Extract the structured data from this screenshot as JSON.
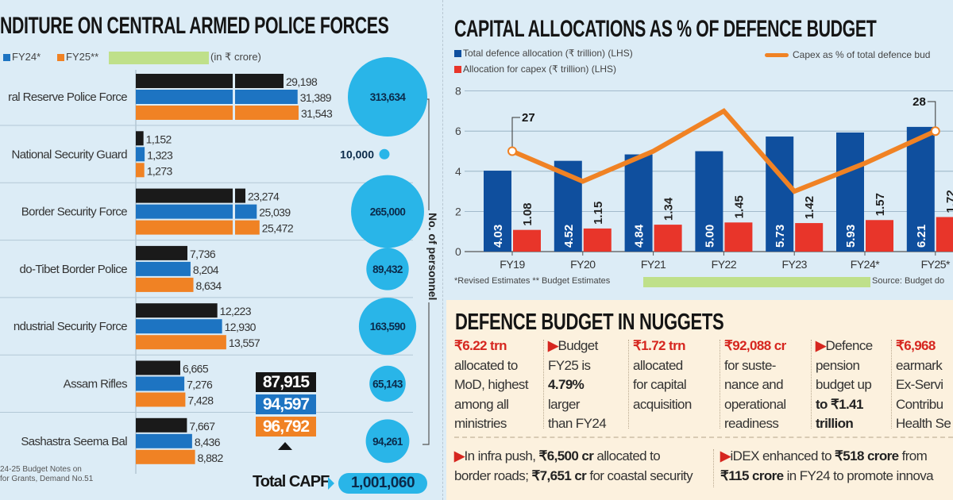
{
  "left": {
    "title": "NDITURE ON CENTRAL ARMED POLICE FORCES",
    "legend": [
      {
        "label": "FY24*",
        "color": "#1d74c2"
      },
      {
        "label": "FY25**",
        "color": "#f08224"
      }
    ],
    "unit": "(in ₹ crore)",
    "personnel_label": "No. of personnel",
    "totals": {
      "black": "87,915",
      "blue": "94,597",
      "orange": "96,792"
    },
    "total_capf_label": "Total CAPF",
    "total_capf_value": "1,001,060",
    "source_lines": [
      "24-25 Budget Notes on",
      "for Grants, Demand No.51"
    ]
  },
  "chart_data": [
    {
      "type": "bar",
      "orientation": "horizontal",
      "title": "NDITURE ON CENTRAL ARMED POLICE FORCES",
      "unit": "(in ₹ crore)",
      "series_colors": [
        "#1a1a1a",
        "#1d74c2",
        "#f08224"
      ],
      "series_names": [
        "",
        "FY24*",
        "FY25**"
      ],
      "rows": [
        {
          "label": "ral Reserve Police Force",
          "values": [
            29198,
            31389,
            31543
          ],
          "value_labels": [
            "29,198",
            "31,389",
            "31,543"
          ],
          "personnel": 313634,
          "personnel_label": "313,634"
        },
        {
          "label": "National Security Guard",
          "values": [
            1152,
            1323,
            1273
          ],
          "value_labels": [
            "1,152",
            "1,323",
            "1,273"
          ],
          "personnel": 10000,
          "personnel_label": "10,000"
        },
        {
          "label": "Border Security Force",
          "values": [
            23274,
            25039,
            25472
          ],
          "value_labels": [
            "23,274",
            "25,039",
            "25,472"
          ],
          "personnel": 265000,
          "personnel_label": "265,000"
        },
        {
          "label": "do-Tibet Border Police",
          "values": [
            7736,
            8204,
            8634
          ],
          "value_labels": [
            "7,736",
            "8,204",
            "8,634"
          ],
          "personnel": 89432,
          "personnel_label": "89,432"
        },
        {
          "label": "ndustrial Security Force",
          "values": [
            12223,
            12930,
            13557
          ],
          "value_labels": [
            "12,223",
            "12,930",
            "13,557"
          ],
          "personnel": 163590,
          "personnel_label": "163,590"
        },
        {
          "label": "Assam Rifles",
          "values": [
            6665,
            7276,
            7428
          ],
          "value_labels": [
            "6,665",
            "7,276",
            "7,428"
          ],
          "personnel": 65143,
          "personnel_label": "65,143"
        },
        {
          "label": "Sashastra Seema Bal",
          "values": [
            7667,
            8436,
            8882
          ],
          "value_labels": [
            "7,667",
            "8,436",
            "8,882"
          ],
          "personnel": 94261,
          "personnel_label": "94,261"
        }
      ],
      "personnel_color": "#29b5e8"
    },
    {
      "type": "bar+line",
      "title": "CAPITAL ALLOCATIONS AS % OF DEFENCE BUDGET",
      "categories": [
        "FY19",
        "FY20",
        "FY21",
        "FY22",
        "FY23",
        "FY24*",
        "FY25*"
      ],
      "series": [
        {
          "name": "Total defence allocation (₹ trillion) (LHS)",
          "color": "#0f4f9e",
          "values": [
            4.03,
            4.52,
            4.84,
            5.0,
            5.73,
            5.93,
            6.21
          ],
          "labels": [
            "4.03",
            "4.52",
            "4.84",
            "5.00",
            "5.73",
            "5.93",
            "6.21"
          ]
        },
        {
          "name": "Allocation for capex (₹ trillion) (LHS)",
          "color": "#e8352a",
          "values": [
            1.08,
            1.15,
            1.34,
            1.45,
            1.42,
            1.57,
            1.72
          ],
          "labels": [
            "1.08",
            "1.15",
            "1.34",
            "1.45",
            "1.42",
            "1.57",
            "1.72"
          ]
        },
        {
          "name": "Capex as % of total defence bud",
          "color": "#f08224",
          "type": "line",
          "values": [
            27,
            25.5,
            27,
            29,
            25,
            26.4,
            28
          ],
          "point_labels": {
            "0": "27",
            "6": "28"
          }
        }
      ],
      "y_ticks": [
        "0",
        "2",
        "4",
        "6",
        "8"
      ],
      "ylim": [
        0,
        8
      ],
      "grid": true,
      "footnote": "*Revised Estimates ** Budget Estimates",
      "source": "Source: Budget do"
    }
  ],
  "nuggets": {
    "title": "DEFENCE BUDGET IN NUGGETS",
    "columns": [
      [
        [
          {
            "t": "₹6.22 trn",
            "s": "red"
          }
        ],
        [
          {
            "t": "allocated to"
          }
        ],
        [
          {
            "t": "MoD, highest"
          }
        ],
        [
          {
            "t": "among all"
          }
        ],
        [
          {
            "t": "ministries"
          }
        ]
      ],
      [
        [
          {
            "t": "▶",
            "s": "red"
          },
          {
            "t": "Budget"
          }
        ],
        [
          {
            "t": "FY25 is"
          }
        ],
        [
          {
            "t": "4.79%",
            "s": "b"
          }
        ],
        [
          {
            "t": "larger"
          }
        ],
        [
          {
            "t": "than FY24"
          }
        ]
      ],
      [
        [
          {
            "t": "₹1.72 trn",
            "s": "red"
          }
        ],
        [
          {
            "t": "allocated"
          }
        ],
        [
          {
            "t": "for capital"
          }
        ],
        [
          {
            "t": "acquisition"
          }
        ]
      ],
      [
        [
          {
            "t": "₹92,088 cr",
            "s": "red"
          }
        ],
        [
          {
            "t": "for suste-"
          }
        ],
        [
          {
            "t": "nance and"
          }
        ],
        [
          {
            "t": "operational"
          }
        ],
        [
          {
            "t": "readiness"
          }
        ]
      ],
      [
        [
          {
            "t": "▶",
            "s": "red"
          },
          {
            "t": "Defence"
          }
        ],
        [
          {
            "t": "pension"
          }
        ],
        [
          {
            "t": "budget up"
          }
        ],
        [
          {
            "t": "to ₹1.41",
            "s": "b"
          }
        ],
        [
          {
            "t": "trillion",
            "s": "b"
          }
        ]
      ],
      [
        [
          {
            "t": "₹6,968",
            "s": "red"
          }
        ],
        [
          {
            "t": "earmark"
          }
        ],
        [
          {
            "t": "Ex-Servi"
          }
        ],
        [
          {
            "t": "Contribu"
          }
        ],
        [
          {
            "t": "Health Se"
          }
        ]
      ]
    ],
    "bottom": [
      [
        [
          {
            "t": "▶",
            "s": "red"
          },
          {
            "t": "In infra push, "
          },
          {
            "t": "₹6,500 cr",
            "s": "b"
          },
          {
            "t": " allocated to"
          }
        ],
        [
          {
            "t": "border roads; "
          },
          {
            "t": "₹7,651 cr",
            "s": "b"
          },
          {
            "t": " for coastal security"
          }
        ]
      ],
      [
        [
          {
            "t": "▶",
            "s": "red"
          },
          {
            "t": "iDEX enhanced to "
          },
          {
            "t": "₹518 crore",
            "s": "b"
          },
          {
            "t": " from"
          }
        ],
        [
          {
            "t": "₹115 crore",
            "s": "b"
          },
          {
            "t": " in FY24 to promote innova"
          }
        ]
      ]
    ]
  }
}
